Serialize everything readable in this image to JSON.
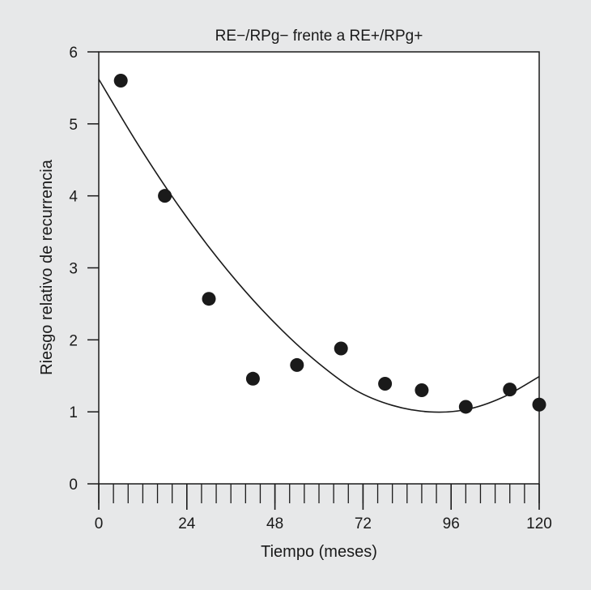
{
  "chart_data": {
    "type": "scatter",
    "title": "RE−/RPg− frente a RE+/RPg+",
    "xlabel": "Tiempo (meses)",
    "ylabel": "Riesgo relativo de recurrencia",
    "xlim": [
      0,
      120
    ],
    "ylim": [
      0,
      6
    ],
    "xticks": [
      0,
      24,
      48,
      72,
      96,
      120
    ],
    "yticks": [
      0,
      1,
      2,
      3,
      4,
      5,
      6
    ],
    "x_minor_tick_step": 4,
    "grid": false,
    "legend": "none",
    "colors": {
      "background": "#e7e8e9",
      "plot_area": "#ffffff",
      "ink": "#1a1a1a"
    },
    "series": [
      {
        "type": "scatter",
        "x": [
          6,
          18,
          30,
          42,
          54,
          66,
          78,
          88,
          100,
          112,
          120
        ],
        "y": [
          5.6,
          4.0,
          2.57,
          1.46,
          1.65,
          1.88,
          1.39,
          1.3,
          1.07,
          1.31,
          1.1
        ]
      },
      {
        "type": "line",
        "x": [
          0,
          10,
          20,
          30,
          40,
          50,
          60,
          70,
          80,
          90,
          100,
          110,
          120
        ],
        "y": [
          5.62,
          4.77,
          3.99,
          3.29,
          2.67,
          2.13,
          1.67,
          1.3,
          1.09,
          1.0,
          1.03,
          1.2,
          1.49
        ]
      }
    ]
  }
}
